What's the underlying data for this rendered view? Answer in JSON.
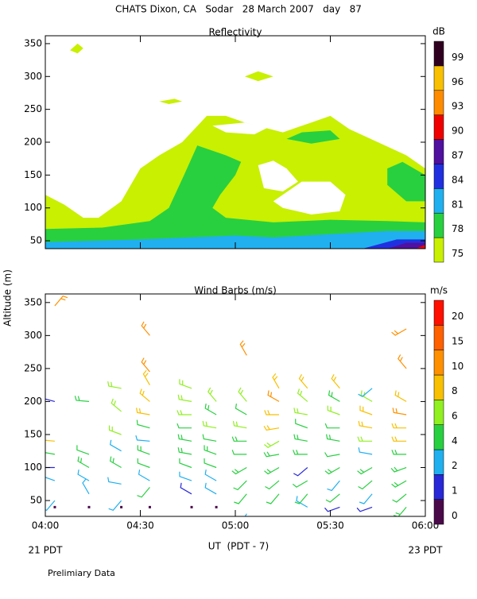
{
  "title": "CHATS Dixon, CA   Sodar   28 March 2007   day   87",
  "note": "Prelimiary Data",
  "chart_data": [
    {
      "type": "contour",
      "title": "Reflectivity",
      "colorbar": {
        "title": "dB",
        "levels": [
          75,
          78,
          81,
          84,
          87,
          90,
          93,
          96,
          99
        ],
        "colors": [
          "#c8f000",
          "#28d040",
          "#20b0f0",
          "#2030e0",
          "#5010a0",
          "#f00000",
          "#ff8c00",
          "#f8c000",
          "#300020"
        ]
      },
      "xlim": [
        4,
        6
      ],
      "ylim": [
        38,
        362
      ],
      "xticks": [
        {
          "value": 4,
          "label": "04:00"
        },
        {
          "value": 4.5,
          "label": "04:30"
        },
        {
          "value": 5,
          "label": "05:00"
        },
        {
          "value": 5.5,
          "label": "05:30"
        },
        {
          "value": 6,
          "label": "06:00"
        }
      ],
      "yticks": [
        50,
        100,
        150,
        200,
        250,
        300,
        350
      ],
      "regions": [
        {
          "level": 75,
          "x": [
            4.0,
            4.1,
            4.2,
            4.28,
            4.4,
            4.5,
            4.6,
            4.72,
            4.85,
            4.95,
            5.05,
            5.25,
            5.4,
            5.5,
            5.6,
            5.75,
            5.9,
            6.0,
            6.0,
            4.0
          ],
          "y": [
            120,
            105,
            85,
            85,
            110,
            160,
            180,
            200,
            240,
            240,
            230,
            215,
            230,
            240,
            220,
            200,
            180,
            160,
            38,
            38
          ],
          "holes": [
            {
              "x": [
                4.88,
                4.95,
                5.1,
                5.17,
                5.05
              ],
              "y": [
                225,
                215,
                212,
                222,
                230
              ]
            },
            {
              "x": [
                5.12,
                5.2,
                5.27,
                5.33,
                5.25,
                5.15
              ],
              "y": [
                165,
                172,
                160,
                140,
                125,
                130
              ]
            },
            {
              "x": [
                5.2,
                5.35,
                5.5,
                5.58,
                5.55,
                5.4,
                5.25
              ],
              "y": [
                110,
                140,
                140,
                120,
                95,
                90,
                100
              ]
            }
          ]
        },
        {
          "level": 75,
          "x": [
            4.13,
            4.17,
            4.2,
            4.17
          ],
          "y": [
            340,
            350,
            343,
            335
          ]
        },
        {
          "level": 75,
          "x": [
            5.05,
            5.12,
            5.2,
            5.12
          ],
          "y": [
            300,
            308,
            300,
            293
          ]
        },
        {
          "level": 75,
          "x": [
            4.6,
            4.68,
            4.72,
            4.65
          ],
          "y": [
            262,
            266,
            262,
            258
          ]
        },
        {
          "level": 78,
          "x": [
            4.0,
            4.3,
            4.55,
            4.65,
            4.73,
            4.8,
            4.95,
            5.03,
            5.0,
            4.92,
            4.88,
            4.95,
            5.2,
            5.5,
            5.8,
            6.0,
            6.0,
            4.0
          ],
          "y": [
            68,
            70,
            80,
            100,
            150,
            195,
            180,
            170,
            150,
            120,
            100,
            85,
            78,
            82,
            80,
            78,
            38,
            38
          ]
        },
        {
          "level": 78,
          "x": [
            5.27,
            5.35,
            5.5,
            5.55,
            5.4
          ],
          "y": [
            205,
            215,
            218,
            205,
            198
          ]
        },
        {
          "level": 78,
          "x": [
            5.8,
            5.8,
            5.88,
            6.0,
            6.0,
            5.9
          ],
          "y": [
            135,
            160,
            170,
            150,
            110,
            110
          ]
        },
        {
          "level": 81,
          "x": [
            4.0,
            4.5,
            5.0,
            5.2,
            5.5,
            5.8,
            6.0,
            6.0,
            4.0
          ],
          "y": [
            48,
            52,
            58,
            55,
            60,
            65,
            65,
            38,
            38
          ]
        },
        {
          "level": 84,
          "x": [
            5.67,
            5.85,
            6.0,
            6.0
          ],
          "y": [
            38,
            52,
            52,
            38
          ]
        },
        {
          "level": 87,
          "x": [
            5.8,
            5.9,
            6.0,
            6.0
          ],
          "y": [
            38,
            47,
            47,
            38
          ]
        },
        {
          "level": 90,
          "x": [
            5.95,
            6.0,
            6.0
          ],
          "y": [
            38,
            44,
            38
          ]
        }
      ]
    },
    {
      "type": "barbs",
      "title": "Wind Barbs (m/s)",
      "xlabel": "UT  (PDT - 7)",
      "ylabel": "Altitude (m)",
      "start_label": "21 PDT",
      "end_label": "23 PDT",
      "colorbar": {
        "title": "m/s",
        "levels": [
          0,
          1,
          2,
          4,
          6,
          8,
          10,
          15,
          20
        ],
        "colors": [
          "#4a0a4a",
          "#2828d8",
          "#20b0f0",
          "#28d040",
          "#90f020",
          "#f8c000",
          "#ff9000",
          "#ff6000",
          "#ff1000"
        ]
      },
      "xlim": [
        4,
        6
      ],
      "ylim": [
        26,
        363
      ],
      "xticks": [
        {
          "value": 4,
          "label": "04:00"
        },
        {
          "value": 4.5,
          "label": "04:30"
        },
        {
          "value": 5,
          "label": "05:00"
        },
        {
          "value": 5.5,
          "label": "05:30"
        },
        {
          "value": 6,
          "label": "06:00"
        }
      ],
      "yticks": [
        50,
        100,
        150,
        200,
        250,
        300,
        350
      ],
      "columns": [
        {
          "x": 4.05,
          "alt": [
            40,
            50,
            80,
            100,
            120,
            140,
            200,
            345
          ],
          "speed": [
            0.5,
            3.5,
            2.5,
            1.5,
            4.5,
            9,
            1.5,
            11
          ],
          "dir": [
            0,
            220,
            290,
            270,
            280,
            275,
            285,
            40
          ]
        },
        {
          "x": 4.23,
          "alt": [
            40,
            60,
            80,
            100,
            120,
            200
          ],
          "speed": [
            0.5,
            3,
            2.5,
            5,
            4.5,
            5
          ],
          "dir": [
            0,
            330,
            300,
            300,
            290,
            275
          ]
        },
        {
          "x": 4.4,
          "alt": [
            40,
            50,
            75,
            100,
            125,
            150,
            185,
            220
          ],
          "speed": [
            0.5,
            3,
            2.5,
            5,
            3,
            6,
            6,
            7
          ],
          "dir": [
            0,
            220,
            280,
            300,
            300,
            290,
            310,
            280
          ]
        },
        {
          "x": 4.55,
          "alt": [
            40,
            70,
            80,
            100,
            120,
            140,
            160,
            180,
            200,
            225,
            245,
            300
          ],
          "speed": [
            0.5,
            4,
            3,
            4,
            5,
            3,
            4,
            9,
            9,
            8,
            10,
            11
          ],
          "dir": [
            0,
            220,
            300,
            290,
            290,
            275,
            285,
            280,
            310,
            330,
            320,
            320
          ]
        },
        {
          "x": 4.77,
          "alt": [
            40,
            60,
            80,
            100,
            120,
            140,
            160,
            180,
            200,
            220
          ],
          "speed": [
            0.5,
            1.5,
            3,
            4,
            5,
            5,
            4,
            6,
            6,
            7
          ],
          "dir": [
            0,
            300,
            290,
            290,
            280,
            280,
            270,
            270,
            280,
            290
          ]
        },
        {
          "x": 4.9,
          "alt": [
            40,
            60,
            80,
            100,
            120,
            140,
            160,
            180,
            200
          ],
          "speed": [
            0.5,
            3,
            3,
            4,
            5,
            4,
            6,
            5,
            6
          ],
          "dir": [
            0,
            300,
            300,
            290,
            290,
            280,
            280,
            300,
            320
          ]
        },
        {
          "x": 5.06,
          "alt": [
            30,
            60,
            80,
            100,
            120,
            140,
            160,
            180,
            200,
            270
          ],
          "speed": [
            2.5,
            4,
            4,
            5,
            4,
            5,
            6,
            4,
            6,
            10
          ],
          "dir": [
            210,
            220,
            225,
            240,
            270,
            270,
            280,
            300,
            320,
            330
          ]
        },
        {
          "x": 5.23,
          "alt": [
            60,
            80,
            100,
            120,
            140,
            160,
            180,
            200,
            220
          ],
          "speed": [
            4,
            4,
            5,
            5,
            7,
            8,
            8,
            10,
            8
          ],
          "dir": [
            220,
            230,
            240,
            260,
            240,
            260,
            270,
            300,
            330
          ]
        },
        {
          "x": 5.38,
          "alt": [
            40,
            60,
            80,
            100,
            120,
            140,
            160,
            180,
            200,
            220
          ],
          "speed": [
            2.5,
            4,
            4,
            1.5,
            5,
            5,
            4,
            6,
            6,
            8
          ],
          "dir": [
            300,
            220,
            240,
            230,
            270,
            280,
            290,
            280,
            310,
            320
          ]
        },
        {
          "x": 5.55,
          "alt": [
            40,
            60,
            80,
            100,
            120,
            140,
            160,
            180,
            200,
            220
          ],
          "speed": [
            1.5,
            4,
            3,
            5,
            4,
            5,
            4,
            6,
            5,
            8
          ],
          "dir": [
            250,
            230,
            220,
            240,
            260,
            280,
            270,
            290,
            300,
            320
          ]
        },
        {
          "x": 5.72,
          "alt": [
            40,
            60,
            80,
            100,
            120,
            140,
            160,
            180,
            200,
            220
          ],
          "speed": [
            1.5,
            3,
            4,
            5,
            3,
            6,
            8,
            8,
            6,
            3
          ],
          "dir": [
            250,
            220,
            230,
            240,
            280,
            270,
            280,
            290,
            300,
            230
          ]
        },
        {
          "x": 5.9,
          "alt": [
            40,
            60,
            80,
            100,
            120,
            140,
            160,
            180,
            200,
            250,
            310
          ],
          "speed": [
            5,
            4,
            5,
            5,
            5,
            8,
            8,
            10,
            9,
            11,
            11
          ],
          "dir": [
            220,
            230,
            240,
            250,
            270,
            270,
            270,
            280,
            300,
            320,
            240
          ]
        }
      ]
    }
  ]
}
